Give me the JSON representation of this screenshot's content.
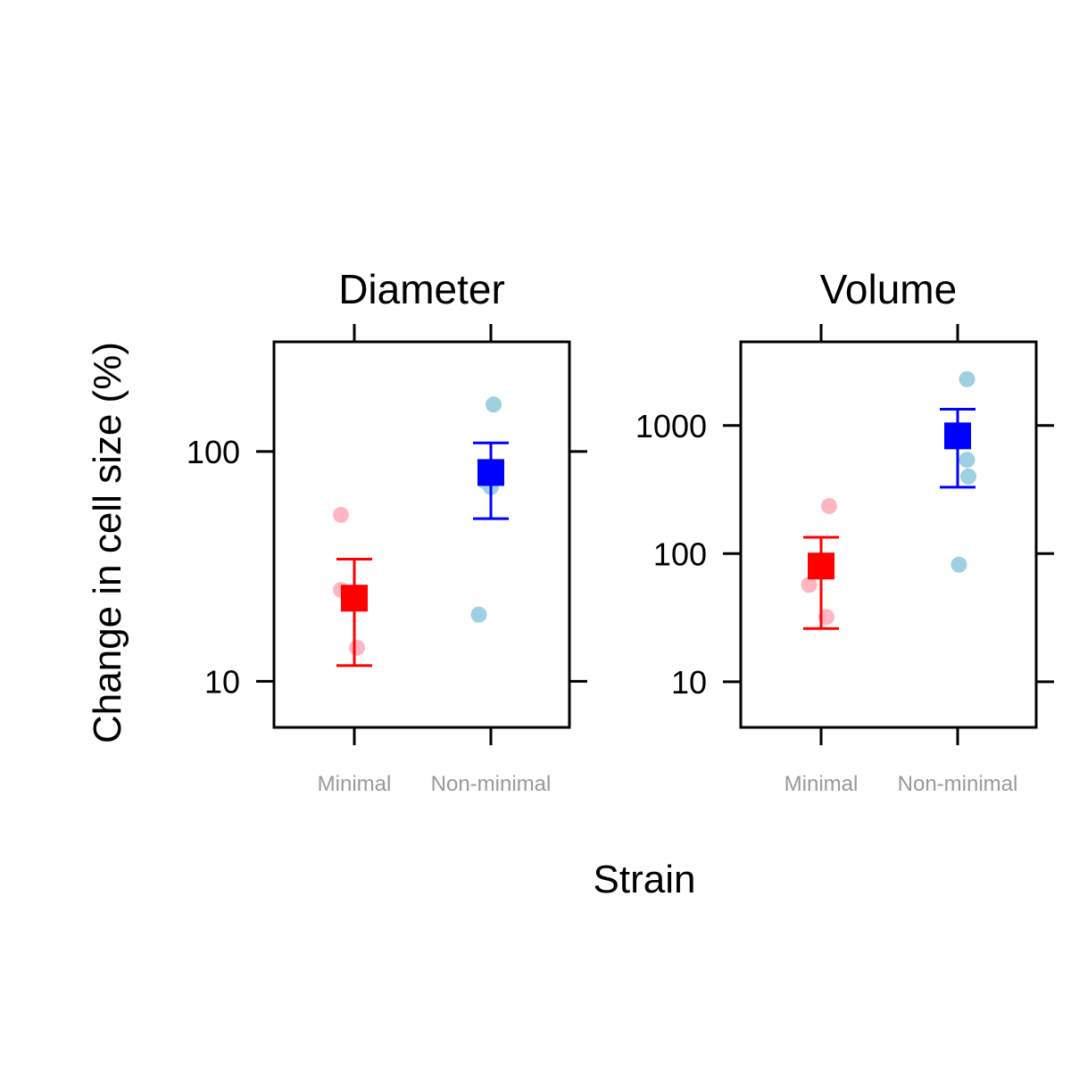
{
  "chart_data": {
    "type": "scatter",
    "ylabel": "Change in cell size (%)",
    "xlabel": "Strain",
    "yscale": "log",
    "categories": [
      "Minimal",
      "Non-minimal"
    ],
    "colors": {
      "mean_minimal": "#ff0000",
      "mean_nonminimal": "#0000ff",
      "point_minimal": "#ffb6c1",
      "point_nonminimal": "#9ed0e1"
    },
    "panels": [
      {
        "title": "Diameter",
        "ylim": [
          6.3,
          300
        ],
        "yticks": [
          10,
          100
        ],
        "ytick_labels": [
          "10",
          "100"
        ],
        "groups": [
          {
            "category": "Minimal",
            "mean": 23,
            "ci": [
              11.7,
              34
            ],
            "points": [
              {
                "x": -0.1,
                "y": 53
              },
              {
                "x": -0.1,
                "y": 25
              },
              {
                "x": 0.02,
                "y": 14
              }
            ]
          },
          {
            "category": "Non-minimal",
            "mean": 81,
            "ci": [
              51,
              109
            ],
            "points": [
              {
                "x": 0.02,
                "y": 160
              },
              {
                "x": -0.04,
                "y": 74
              },
              {
                "x": 0.0,
                "y": 70
              },
              {
                "x": -0.09,
                "y": 19.5
              }
            ]
          }
        ]
      },
      {
        "title": "Volume",
        "ylim": [
          4.4,
          4500
        ],
        "yticks": [
          10,
          100,
          1000
        ],
        "ytick_labels": [
          "10",
          "100",
          "1000"
        ],
        "groups": [
          {
            "category": "Minimal",
            "mean": 80,
            "ci": [
              26,
              134
            ],
            "points": [
              {
                "x": 0.06,
                "y": 235
              },
              {
                "x": -0.09,
                "y": 57
              },
              {
                "x": 0.04,
                "y": 32
              }
            ]
          },
          {
            "category": "Non-minimal",
            "mean": 830,
            "ci": [
              330,
              1340
            ],
            "points": [
              {
                "x": 0.07,
                "y": 2300
              },
              {
                "x": 0.07,
                "y": 540
              },
              {
                "x": 0.08,
                "y": 400
              },
              {
                "x": 0.01,
                "y": 82
              }
            ]
          }
        ]
      }
    ]
  }
}
